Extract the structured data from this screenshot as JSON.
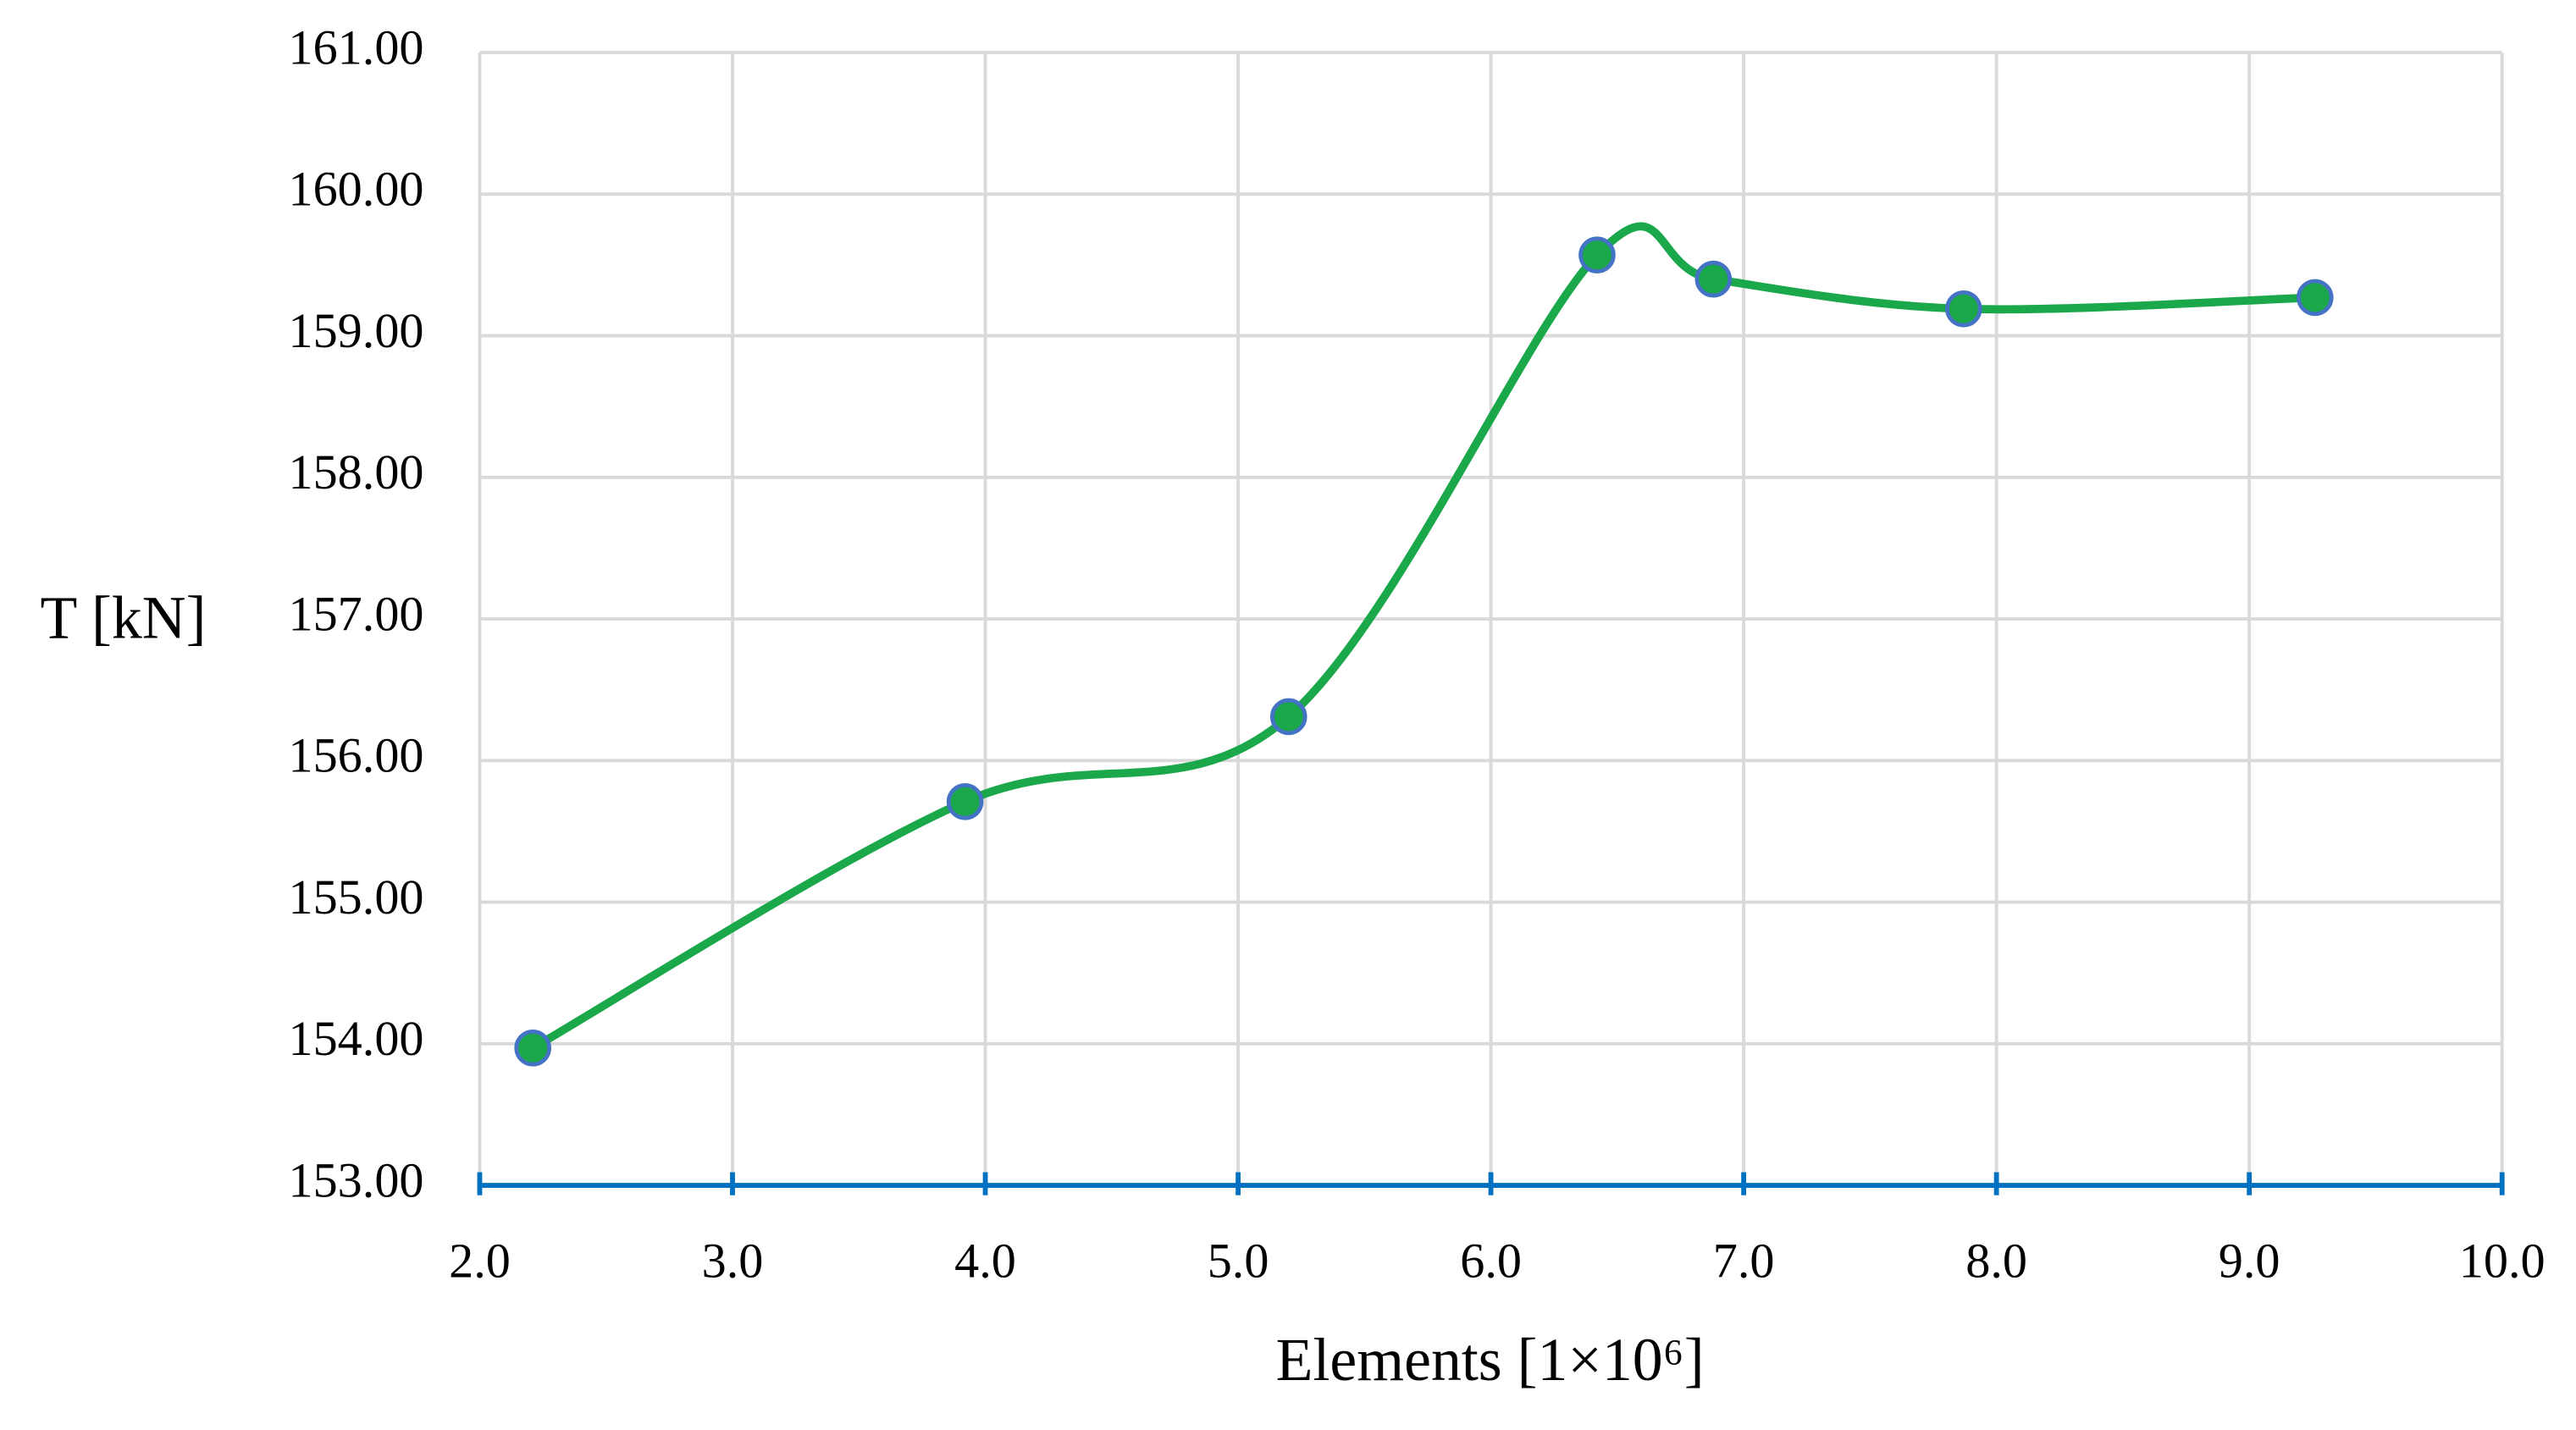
{
  "chart_data": {
    "type": "line",
    "x_label": "Elements [1×10⁶]",
    "y_label": "T [kN]",
    "smooth": true,
    "grid": true,
    "xlim": [
      2,
      10
    ],
    "ylim": [
      153,
      161
    ],
    "xticks": [
      {
        "value": 2,
        "label": "2.0"
      },
      {
        "value": 3,
        "label": "3.0"
      },
      {
        "value": 4,
        "label": "4.0"
      },
      {
        "value": 5,
        "label": "5.0"
      },
      {
        "value": 6,
        "label": "6.0"
      },
      {
        "value": 7,
        "label": "7.0"
      },
      {
        "value": 8,
        "label": "8.0"
      },
      {
        "value": 9,
        "label": "9.0"
      },
      {
        "value": 10,
        "label": "10.0"
      }
    ],
    "yticks": [
      {
        "value": 153,
        "label": "153.00"
      },
      {
        "value": 154,
        "label": "154.00"
      },
      {
        "value": 155,
        "label": "155.00"
      },
      {
        "value": 156,
        "label": "156.00"
      },
      {
        "value": 157,
        "label": "157.00"
      },
      {
        "value": 158,
        "label": "158.00"
      },
      {
        "value": 159,
        "label": "159.00"
      },
      {
        "value": 160,
        "label": "160.00"
      },
      {
        "value": 161,
        "label": "161.00"
      }
    ],
    "x": [
      2.21,
      3.92,
      5.2,
      6.42,
      6.88,
      7.87,
      9.26
    ],
    "series": [
      {
        "color": "#1aa84a",
        "marker_edge_color": "#4472c4",
        "values": [
          153.97,
          155.71,
          156.31,
          159.57,
          159.4,
          159.19,
          159.27
        ]
      }
    ]
  }
}
